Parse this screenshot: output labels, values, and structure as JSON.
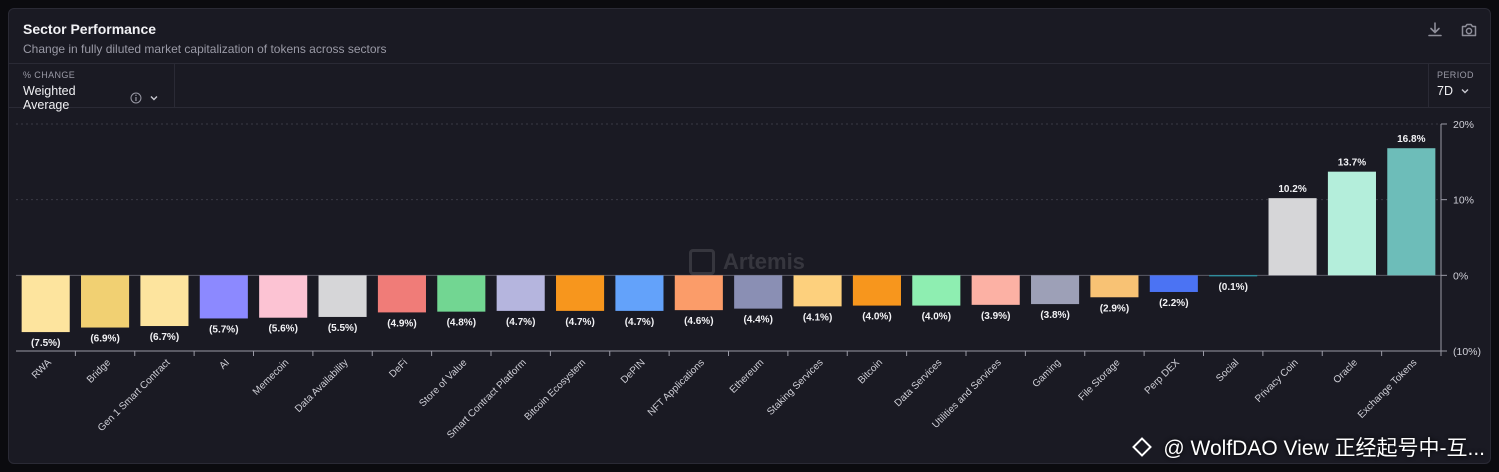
{
  "header": {
    "title": "Sector Performance",
    "subtitle": "Change in fully diluted market capitalization of tokens across sectors",
    "icons": [
      "download-icon",
      "camera-icon"
    ]
  },
  "controls": {
    "change_label": "% CHANGE",
    "change_value": "Weighted Average",
    "period_label": "PERIOD",
    "period_value": "7D"
  },
  "watermark": "Artemis",
  "credit": "@ WolfDAO View 正经起号中-互...",
  "chart_data": {
    "type": "bar",
    "categories": [
      "RWA",
      "Bridge",
      "Gen 1 Smart Contract",
      "AI",
      "Memecoin",
      "Data Availability",
      "DeFi",
      "Store of Value",
      "Smart Contract Platform",
      "Bitcoin Ecosystem",
      "DePIN",
      "NFT Applications",
      "Ethereum",
      "Staking Services",
      "Bitcoin",
      "Data Services",
      "Utilities and Services",
      "Gaming",
      "File Storage",
      "Perp DEX",
      "Social",
      "Privacy Coin",
      "Oracle",
      "Exchange Tokens"
    ],
    "values": [
      -7.5,
      -6.9,
      -6.7,
      -5.7,
      -5.6,
      -5.5,
      -4.9,
      -4.8,
      -4.7,
      -4.7,
      -4.7,
      -4.6,
      -4.4,
      -4.1,
      -4.0,
      -4.0,
      -3.9,
      -3.8,
      -2.9,
      -2.2,
      -0.1,
      10.2,
      13.7,
      16.8
    ],
    "value_labels": [
      "(7.5%)",
      "(6.9%)",
      "(6.7%)",
      "(5.7%)",
      "(5.6%)",
      "(5.5%)",
      "(4.9%)",
      "(4.8%)",
      "(4.7%)",
      "(4.7%)",
      "(4.7%)",
      "(4.6%)",
      "(4.4%)",
      "(4.1%)",
      "(4.0%)",
      "(4.0%)",
      "(3.9%)",
      "(3.8%)",
      "(2.9%)",
      "(2.2%)",
      "(0.1%)",
      "10.2%",
      "13.7%",
      "16.8%"
    ],
    "colors": [
      "#fde49e",
      "#f1d072",
      "#fde49e",
      "#8c89ff",
      "#fcc3d3",
      "#d6d6d8",
      "#f07c78",
      "#72d692",
      "#b5b5de",
      "#f7961d",
      "#63a2fa",
      "#fb9c69",
      "#8a8fb4",
      "#fdd07d",
      "#f7961d",
      "#8eeeb1",
      "#fcb1a4",
      "#9da0b7",
      "#f8c274",
      "#4b73f3",
      "#1fa6b8",
      "#d6d6d8",
      "#b4eedb",
      "#6dbdb9"
    ],
    "y_ticks": [
      20,
      10,
      0,
      -10
    ],
    "y_tick_labels": [
      "20%",
      "10%",
      "0%",
      "(10%)"
    ],
    "ylim": [
      -10,
      20
    ],
    "grid": true
  }
}
